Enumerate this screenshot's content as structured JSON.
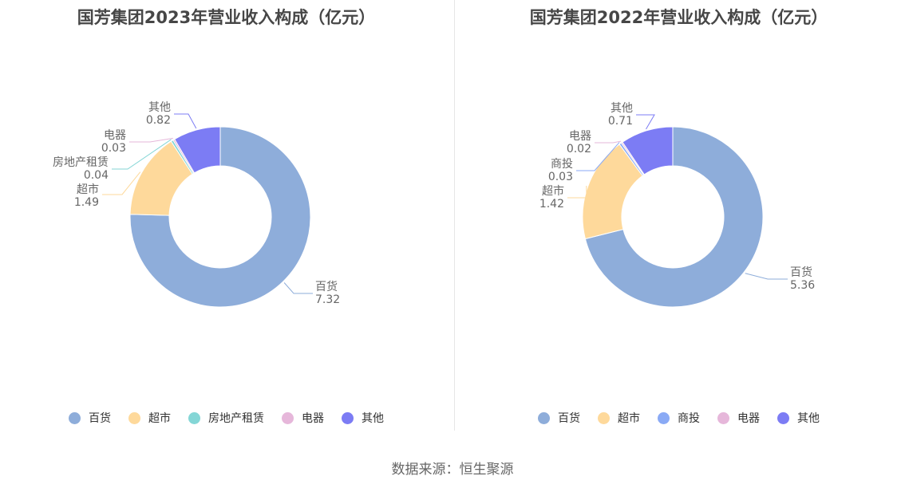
{
  "chart_data": [
    {
      "type": "pie",
      "title": "国芳集团2023年营业收入构成（亿元）",
      "categories": [
        "百货",
        "超市",
        "房地产租赁",
        "电器",
        "其他"
      ],
      "values": [
        7.32,
        1.49,
        0.04,
        0.03,
        0.82
      ],
      "value_labels": [
        "7.32",
        "1.49",
        "0.04",
        "0.03",
        "0.82"
      ],
      "colors": [
        "#8eadda",
        "#fed99b",
        "#84d6d6",
        "#e6b7da",
        "#7c7cf4"
      ],
      "legend_position": "bottom"
    },
    {
      "type": "pie",
      "title": "国芳集团2022年营业收入构成（亿元）",
      "categories": [
        "百货",
        "超市",
        "商投",
        "电器",
        "其他"
      ],
      "values": [
        5.36,
        1.42,
        0.03,
        0.02,
        0.71
      ],
      "value_labels": [
        "5.36",
        "1.42",
        "0.03",
        "0.02",
        "0.71"
      ],
      "colors": [
        "#8eadda",
        "#fed99b",
        "#8aaaf5",
        "#e6b7da",
        "#7c7cf4"
      ],
      "legend_position": "bottom"
    }
  ],
  "footer": {
    "source": "数据来源：恒生聚源"
  }
}
